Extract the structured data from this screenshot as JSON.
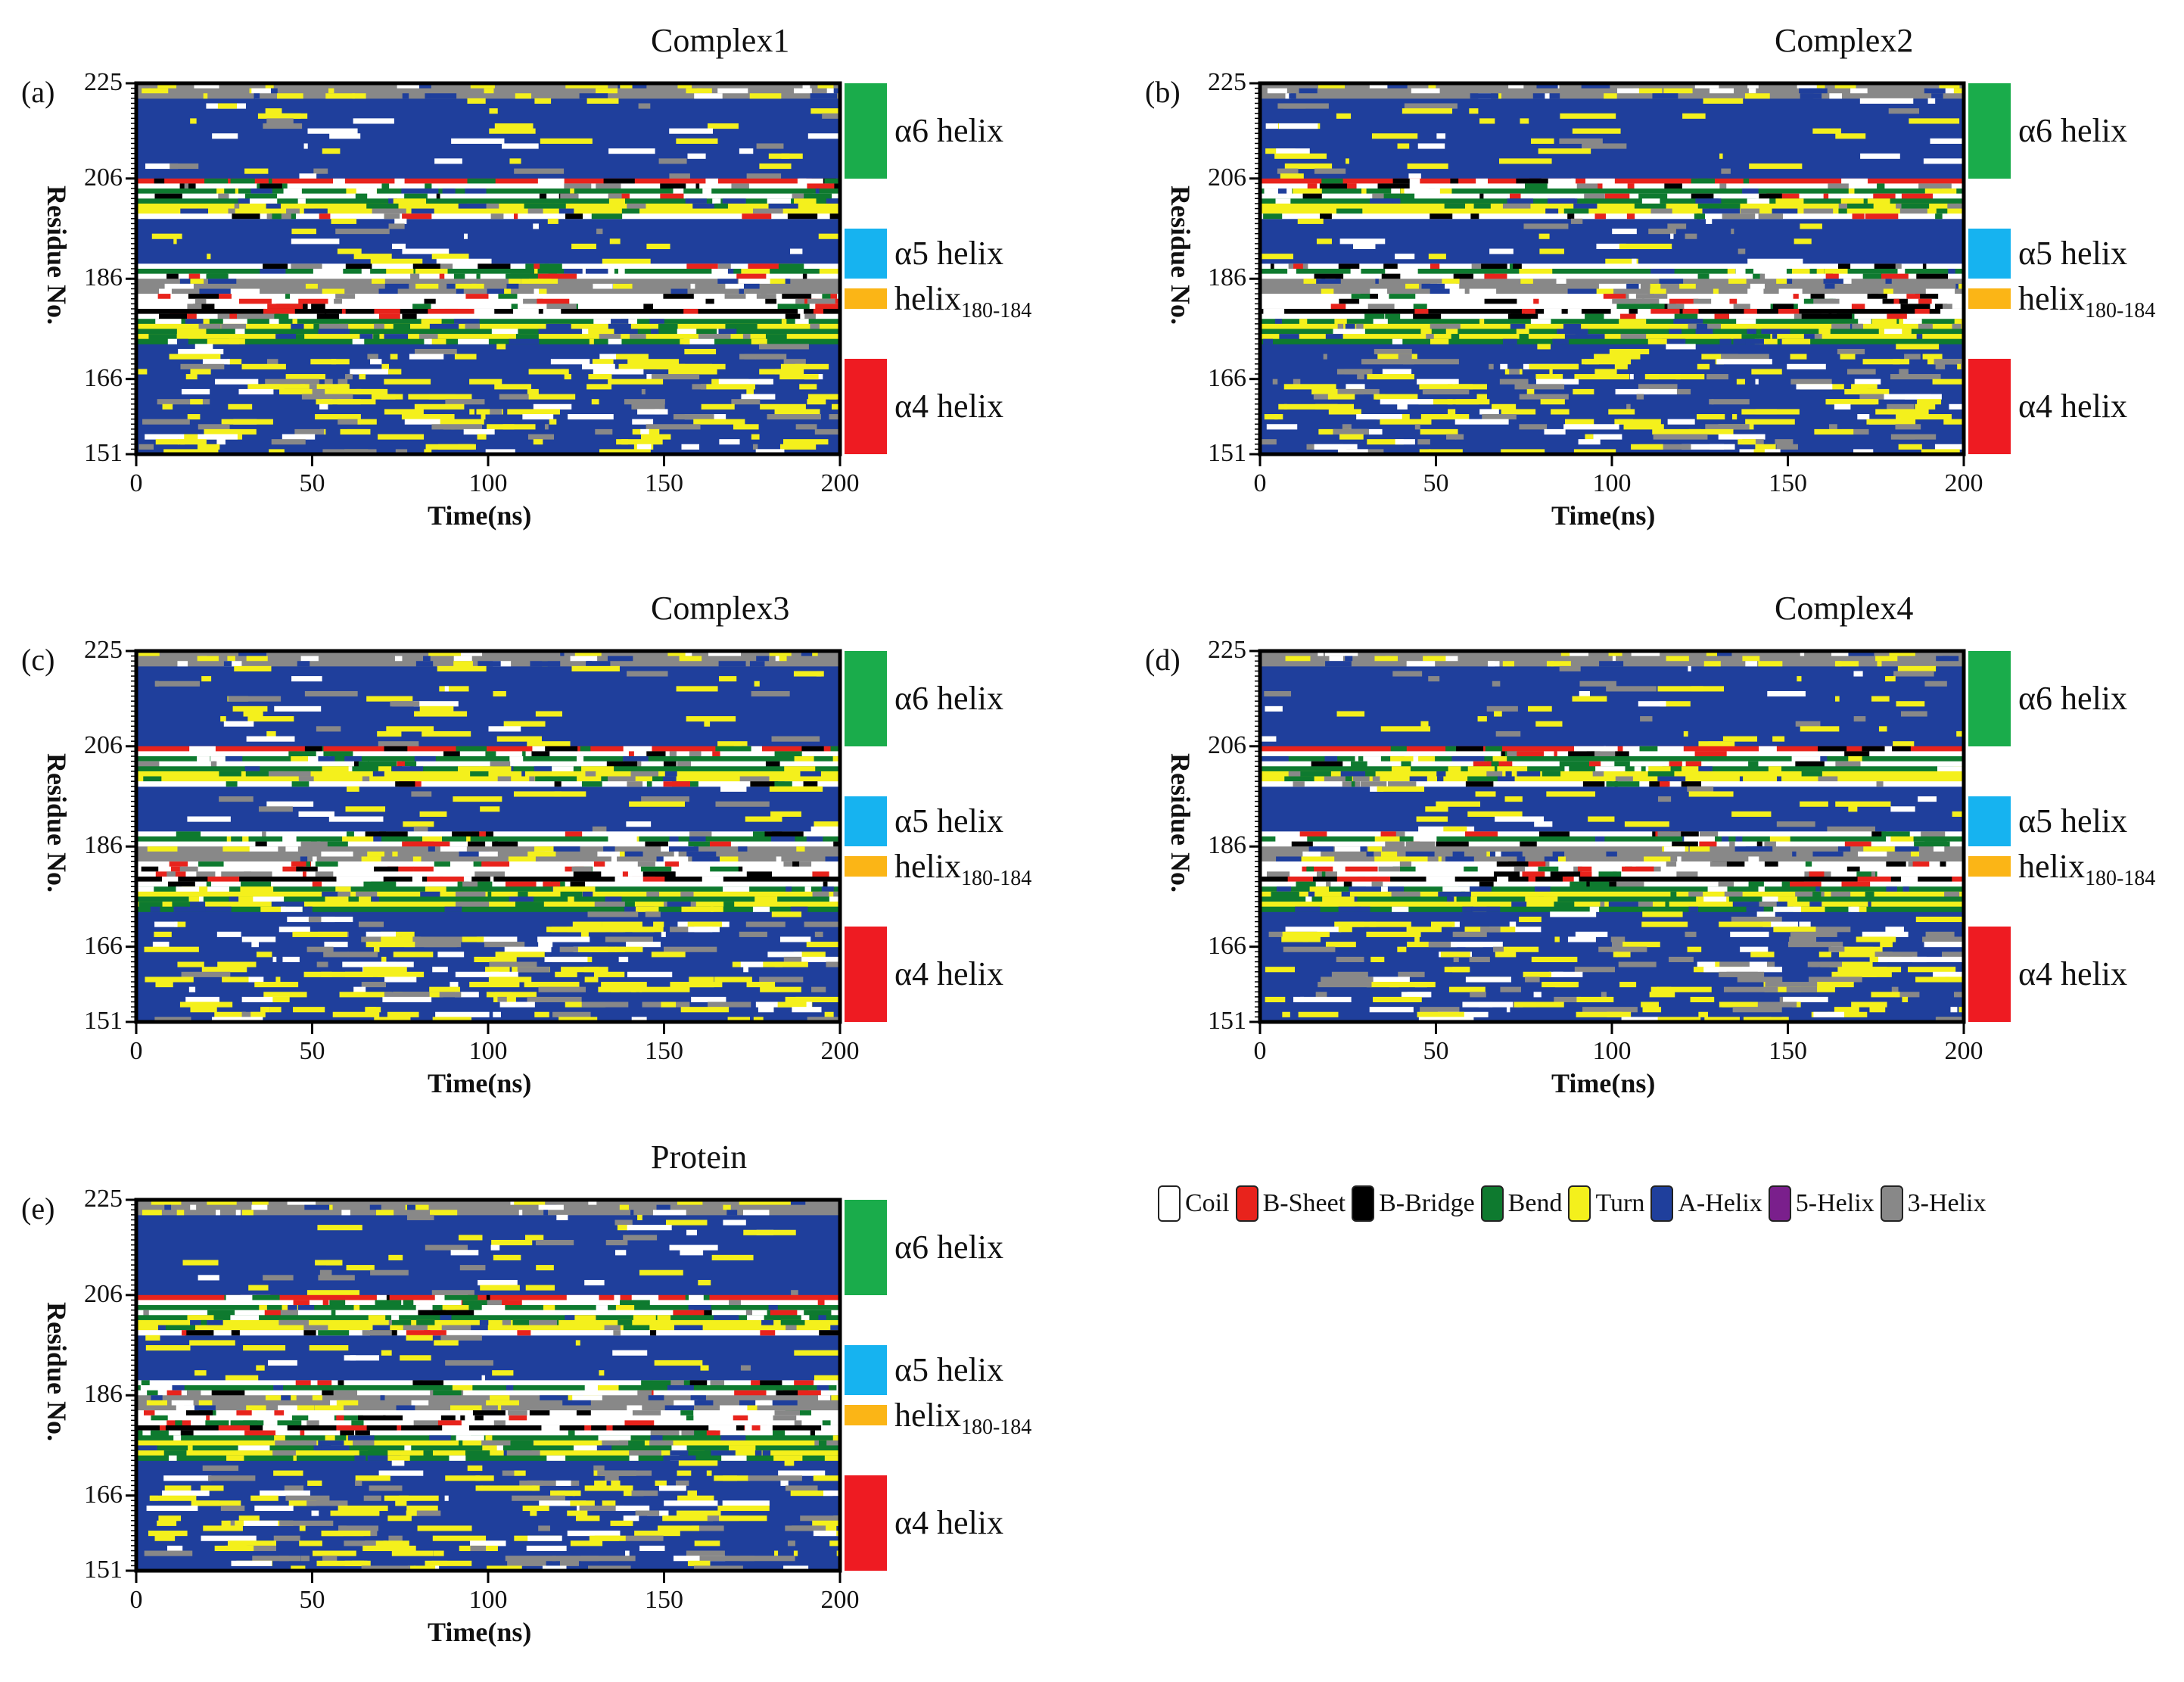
{
  "chart_data": {
    "type": "heatmap",
    "xlabel": "Time(ns)",
    "ylabel": "Residue No.",
    "xlim": [
      0,
      200
    ],
    "ylim": [
      151,
      225
    ],
    "x_ticks": [
      "0",
      "50",
      "100",
      "150",
      "200"
    ],
    "y_ticks": [
      "225",
      "206",
      "186",
      "166",
      "151"
    ],
    "regions": [
      {
        "label": "α6 helix",
        "sub": "",
        "range": [
          206,
          225
        ],
        "color": "#1aac4b"
      },
      {
        "label": "α5 helix",
        "sub": "",
        "range": [
          186,
          196
        ],
        "color": "#16b3f0"
      },
      {
        "label": "helix",
        "sub": "180-184",
        "range": [
          180,
          184
        ],
        "color": "#fbb516"
      },
      {
        "label": "α4 helix",
        "sub": "",
        "range": [
          151,
          170
        ],
        "color": "#ee1b22"
      }
    ],
    "legend": [
      {
        "name": "Coil",
        "color": "#ffffff"
      },
      {
        "name": "B-Sheet",
        "color": "#e8231c"
      },
      {
        "name": "B-Bridge",
        "color": "#000000"
      },
      {
        "name": "Bend",
        "color": "#0e7a2f"
      },
      {
        "name": "Turn",
        "color": "#f4f01c"
      },
      {
        "name": "A-Helix",
        "color": "#1f3f9c"
      },
      {
        "name": "5-Helix",
        "color": "#7a1f8c"
      },
      {
        "name": "3-Helix",
        "color": "#888888"
      }
    ],
    "panels": [
      {
        "id": "a",
        "label": "(a)",
        "title": "Complex1"
      },
      {
        "id": "b",
        "label": "(b)",
        "title": "Complex2"
      },
      {
        "id": "c",
        "label": "(c)",
        "title": "Complex3"
      },
      {
        "id": "d",
        "label": "(d)",
        "title": "Complex4"
      },
      {
        "id": "e",
        "label": "(e)",
        "title": "Protein"
      }
    ]
  }
}
